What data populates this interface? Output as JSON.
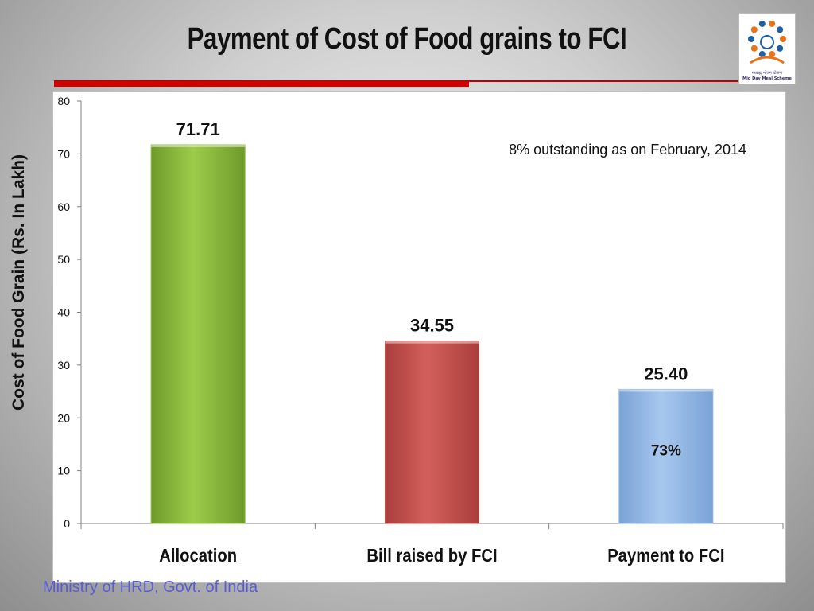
{
  "slide": {
    "title": "Payment of Cost of Food grains to FCI",
    "footer": "Ministry of HRD, Govt. of India"
  },
  "logo": {
    "name": "mid-day-meal-scheme-logo",
    "caption_hindi": "मध्याह्न भोजन योजना",
    "caption_english": "Mid Day Meal Scheme",
    "colors": [
      "#e8731a",
      "#1f5fa8",
      "#e8731a"
    ]
  },
  "chart_data": {
    "type": "bar",
    "title": "",
    "ylabel": "Cost of Food Grain (Rs. In Lakh)",
    "xlabel": "",
    "ylim": [
      0,
      80
    ],
    "yticks": [
      0,
      10,
      20,
      30,
      40,
      50,
      60,
      70,
      80
    ],
    "categories": [
      "Allocation",
      "Bill raised by FCI",
      "Payment to FCI"
    ],
    "values": [
      71.71,
      34.55,
      25.4
    ],
    "value_labels": [
      "71.71",
      "34.55",
      "25.40"
    ],
    "bar_colors": [
      "#8cbf3a",
      "#c0504d",
      "#8db3e2"
    ],
    "bar_inner_labels": [
      "",
      "",
      "73%"
    ],
    "annotations": [
      {
        "text": "8% outstanding as on February, 2014",
        "position": "top-right"
      }
    ],
    "grid": false,
    "legend": "none"
  }
}
